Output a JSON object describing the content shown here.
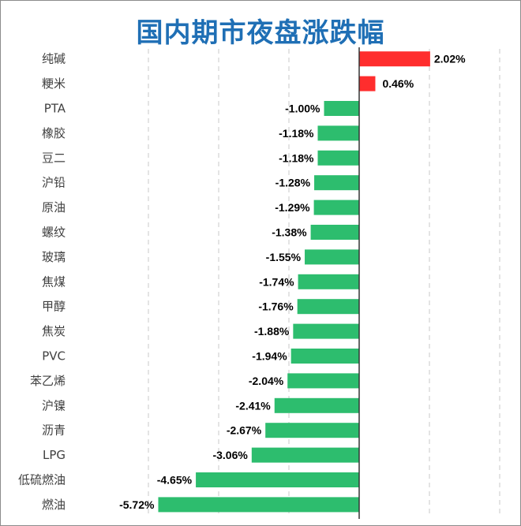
{
  "chart_data": {
    "type": "bar",
    "orientation": "horizontal",
    "title": "国内期市夜盘涨跌幅",
    "xlabel": "",
    "ylabel": "",
    "xlim": [
      -6.0,
      4.0
    ],
    "grid": true,
    "legend": "none",
    "categories": [
      "纯碱",
      "粳米",
      "PTA",
      "橡胶",
      "豆二",
      "沪铅",
      "原油",
      "螺纹",
      "玻璃",
      "焦煤",
      "甲醇",
      "焦炭",
      "PVC",
      "苯乙烯",
      "沪镍",
      "沥青",
      "LPG",
      "低硫燃油",
      "燃油"
    ],
    "values": [
      2.02,
      0.46,
      -1.0,
      -1.18,
      -1.18,
      -1.28,
      -1.29,
      -1.38,
      -1.55,
      -1.74,
      -1.76,
      -1.88,
      -1.94,
      -2.04,
      -2.41,
      -2.67,
      -3.06,
      -4.65,
      -5.72
    ],
    "labels": [
      "2.02%",
      "0.46%",
      "-1.00%",
      "-1.18%",
      "-1.18%",
      "-1.28%",
      "-1.29%",
      "-1.38%",
      "-1.55%",
      "-1.74%",
      "-1.76%",
      "-1.88%",
      "-1.94%",
      "-2.04%",
      "-2.41%",
      "-2.67%",
      "-3.06%",
      "-4.65%",
      "-5.72%"
    ],
    "colors": {
      "positive": "#ff2d2d",
      "negative": "#2dbd6e",
      "title": "#1f6fb5",
      "grid": "#c8c8c8",
      "axis": "#333333"
    }
  }
}
